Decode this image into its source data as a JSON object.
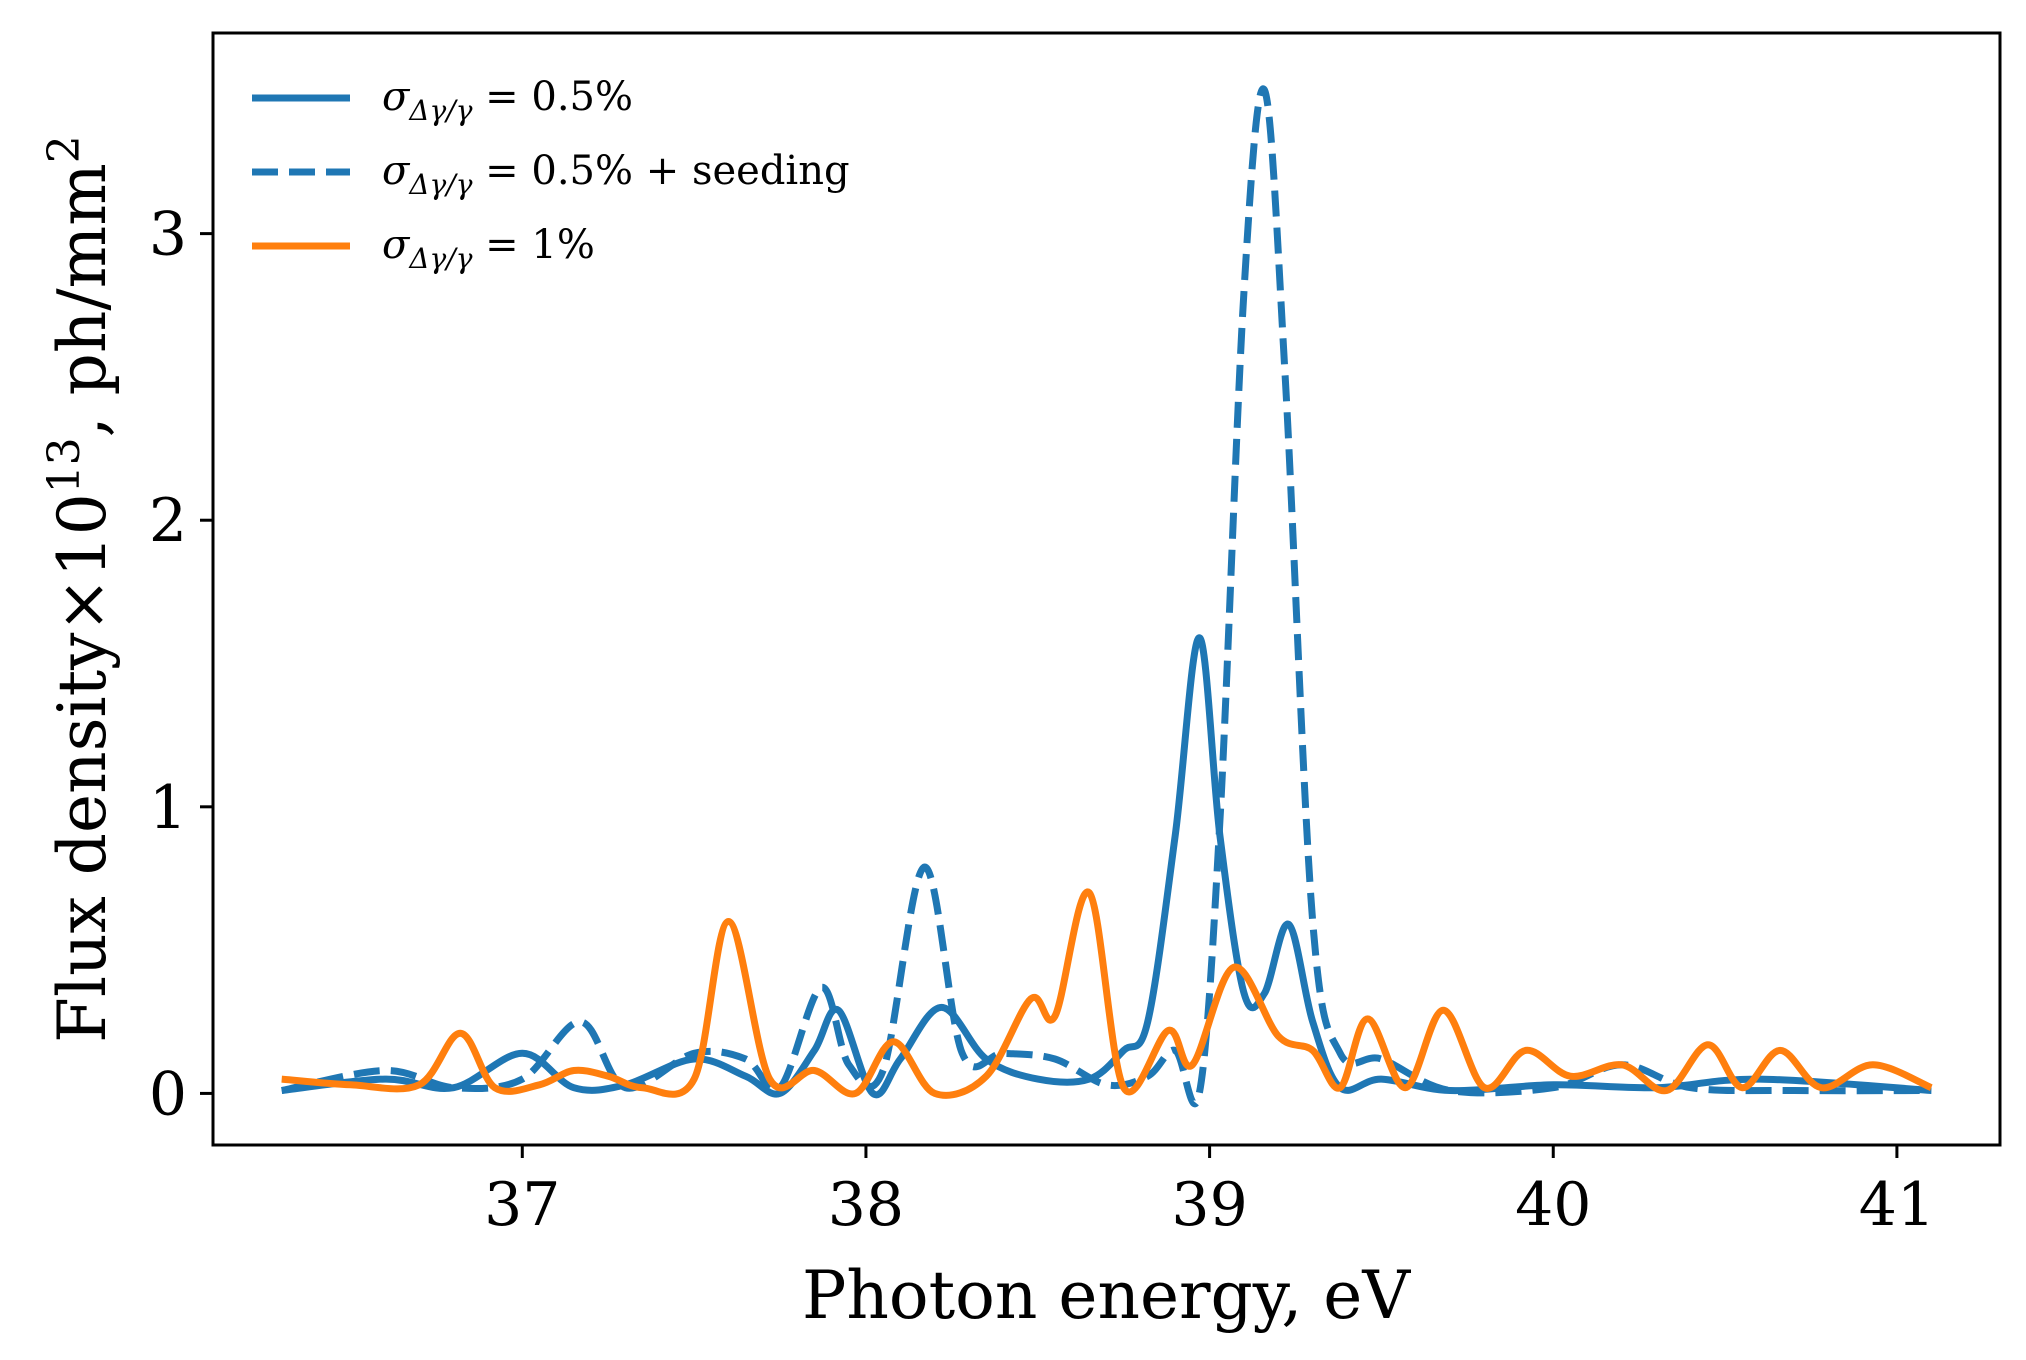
{
  "chart_data": {
    "type": "line",
    "xlabel": "Photon energy, eV",
    "ylabel": {
      "prefix": "Flux density",
      "times": "×10",
      "exp": "13",
      "unit": ", ph/mm",
      "unit_exp": "2"
    },
    "xlim": [
      36.1,
      41.3
    ],
    "ylim": [
      -0.18,
      3.7
    ],
    "xticks": [
      37,
      38,
      39,
      40,
      41
    ],
    "xtick_labels": [
      "37",
      "38",
      "39",
      "40",
      "41"
    ],
    "yticks": [
      0,
      1,
      2,
      3
    ],
    "ytick_labels": [
      "0",
      "1",
      "2",
      "3"
    ],
    "grid": false,
    "legend_position": "top-left",
    "series": [
      {
        "name": "σΔγ/γ = 0.5%",
        "legend": {
          "sym": "σ",
          "sub": "Δγ/γ",
          "rest": " = 0.5%"
        },
        "color": "#1f77b4",
        "style": "solid",
        "x": [
          36.3,
          36.6,
          36.8,
          37.0,
          37.15,
          37.3,
          37.5,
          37.65,
          37.75,
          37.85,
          37.92,
          38.02,
          38.1,
          38.22,
          38.35,
          38.5,
          38.65,
          38.75,
          38.82,
          38.9,
          38.97,
          39.03,
          39.1,
          39.16,
          39.23,
          39.3,
          39.38,
          39.5,
          39.7,
          40.0,
          40.3,
          40.6,
          41.1
        ],
        "y": [
          0.01,
          0.05,
          0.02,
          0.14,
          0.02,
          0.03,
          0.12,
          0.06,
          0.0,
          0.15,
          0.29,
          0.0,
          0.12,
          0.3,
          0.12,
          0.05,
          0.05,
          0.15,
          0.25,
          0.9,
          1.59,
          0.9,
          0.35,
          0.35,
          0.59,
          0.25,
          0.02,
          0.05,
          0.01,
          0.03,
          0.02,
          0.05,
          0.01
        ]
      },
      {
        "name": "σΔγ/γ = 0.5% + seeding",
        "legend": {
          "sym": "σ",
          "sub": "Δγ/γ",
          "rest": " = 0.5% + seeding"
        },
        "color": "#1f77b4",
        "style": "dashed",
        "x": [
          36.3,
          36.6,
          36.8,
          37.0,
          37.17,
          37.3,
          37.5,
          37.65,
          37.75,
          37.87,
          37.95,
          38.05,
          38.17,
          38.28,
          38.4,
          38.55,
          38.7,
          38.82,
          38.9,
          38.97,
          39.03,
          39.1,
          39.16,
          39.22,
          39.3,
          39.38,
          39.5,
          39.7,
          40.0,
          40.2,
          40.4,
          40.7,
          41.1
        ],
        "y": [
          0.01,
          0.08,
          0.02,
          0.05,
          0.25,
          0.02,
          0.14,
          0.12,
          0.02,
          0.37,
          0.1,
          0.08,
          0.79,
          0.14,
          0.14,
          0.12,
          0.03,
          0.06,
          0.15,
          0.0,
          0.95,
          2.8,
          3.5,
          2.5,
          0.6,
          0.14,
          0.12,
          0.01,
          0.02,
          0.1,
          0.02,
          0.01,
          0.01
        ]
      },
      {
        "name": "σΔγ/γ = 1%",
        "legend": {
          "sym": "σ",
          "sub": "Δγ/γ",
          "rest": " = 1%"
        },
        "color": "#ff7f0e",
        "style": "solid",
        "x": [
          36.3,
          36.5,
          36.7,
          36.82,
          36.92,
          37.05,
          37.15,
          37.25,
          37.35,
          37.5,
          37.6,
          37.72,
          37.85,
          37.97,
          38.08,
          38.2,
          38.35,
          38.48,
          38.55,
          38.65,
          38.75,
          38.88,
          38.95,
          39.07,
          39.2,
          39.3,
          39.38,
          39.46,
          39.57,
          39.68,
          39.8,
          39.92,
          40.05,
          40.2,
          40.33,
          40.45,
          40.55,
          40.66,
          40.78,
          40.93,
          41.1
        ],
        "y": [
          0.05,
          0.03,
          0.03,
          0.21,
          0.02,
          0.03,
          0.08,
          0.06,
          0.02,
          0.05,
          0.6,
          0.05,
          0.08,
          0.0,
          0.18,
          0.0,
          0.06,
          0.33,
          0.27,
          0.7,
          0.02,
          0.22,
          0.1,
          0.44,
          0.2,
          0.15,
          0.02,
          0.26,
          0.02,
          0.29,
          0.02,
          0.15,
          0.06,
          0.1,
          0.01,
          0.17,
          0.02,
          0.15,
          0.02,
          0.1,
          0.02
        ]
      }
    ]
  }
}
